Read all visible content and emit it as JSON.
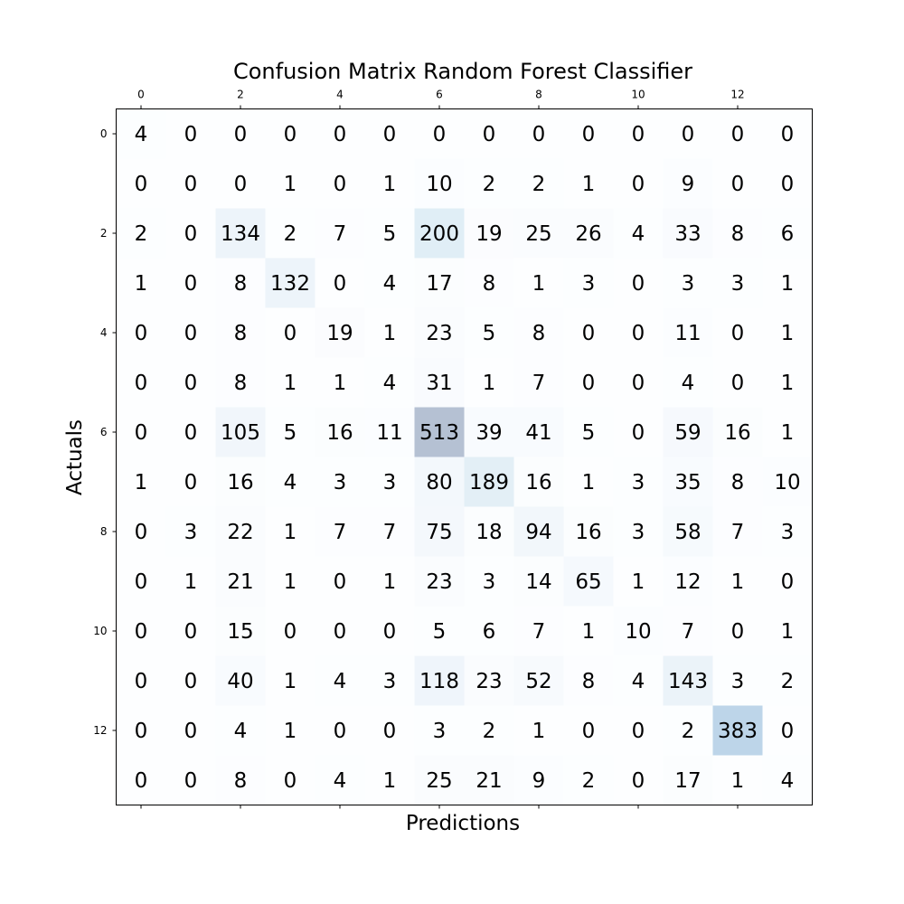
{
  "chart_data": {
    "type": "heatmap",
    "title": "Confusion Matrix Random Forest Classifier",
    "xlabel": "Predictions",
    "ylabel": "Actuals",
    "x_tick_labels": [
      "0",
      "2",
      "4",
      "6",
      "8",
      "10",
      "12"
    ],
    "y_tick_labels": [
      "0",
      "2",
      "4",
      "6",
      "8",
      "10",
      "12"
    ],
    "x_tick_values": [
      0,
      2,
      4,
      6,
      8,
      10,
      12
    ],
    "y_tick_values": [
      0,
      2,
      4,
      6,
      8,
      10,
      12
    ],
    "xlim": [
      -0.5,
      13.5
    ],
    "ylim": [
      -0.5,
      13.5
    ],
    "x_axis_position": "top",
    "colormap": "Blues",
    "cell_alpha": 0.3,
    "matrix": [
      [
        4,
        0,
        0,
        0,
        0,
        0,
        0,
        0,
        0,
        0,
        0,
        0,
        0,
        0
      ],
      [
        0,
        0,
        0,
        1,
        0,
        1,
        10,
        2,
        2,
        1,
        0,
        9,
        0,
        0
      ],
      [
        2,
        0,
        134,
        2,
        7,
        5,
        200,
        19,
        25,
        26,
        4,
        33,
        8,
        6
      ],
      [
        1,
        0,
        8,
        132,
        0,
        4,
        17,
        8,
        1,
        3,
        0,
        3,
        3,
        1
      ],
      [
        0,
        0,
        8,
        0,
        19,
        1,
        23,
        5,
        8,
        0,
        0,
        11,
        0,
        1
      ],
      [
        0,
        0,
        8,
        1,
        1,
        4,
        31,
        1,
        7,
        0,
        0,
        4,
        0,
        1
      ],
      [
        0,
        0,
        105,
        5,
        16,
        11,
        513,
        39,
        41,
        5,
        0,
        59,
        16,
        1
      ],
      [
        1,
        0,
        16,
        4,
        3,
        3,
        80,
        189,
        16,
        1,
        3,
        35,
        8,
        10
      ],
      [
        0,
        3,
        22,
        1,
        7,
        7,
        75,
        18,
        94,
        16,
        3,
        58,
        7,
        3
      ],
      [
        0,
        1,
        21,
        1,
        0,
        1,
        23,
        3,
        14,
        65,
        1,
        12,
        1,
        0
      ],
      [
        0,
        0,
        15,
        0,
        0,
        0,
        5,
        6,
        7,
        1,
        10,
        7,
        0,
        1
      ],
      [
        0,
        0,
        40,
        1,
        4,
        3,
        118,
        23,
        52,
        8,
        4,
        143,
        3,
        2
      ],
      [
        0,
        0,
        4,
        1,
        0,
        0,
        3,
        2,
        1,
        0,
        0,
        2,
        383,
        0
      ],
      [
        0,
        0,
        8,
        0,
        4,
        1,
        25,
        21,
        9,
        2,
        0,
        17,
        1,
        4
      ]
    ]
  }
}
